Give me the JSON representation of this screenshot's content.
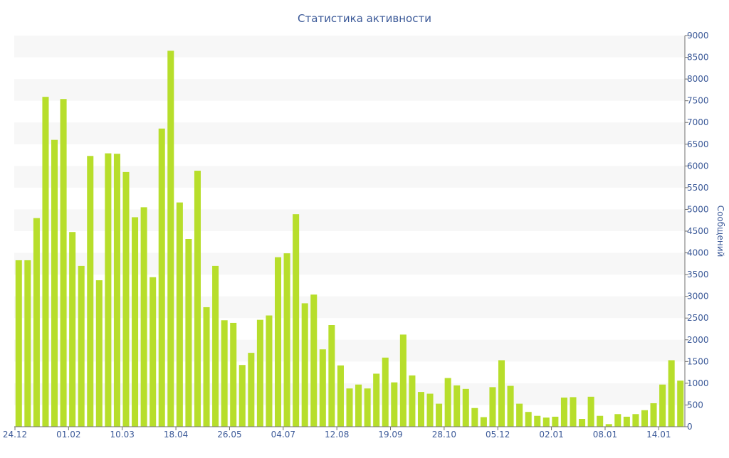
{
  "chart_data": {
    "type": "bar",
    "title": "Статистика активности",
    "ylabel": "Сообщений",
    "xlabel": "",
    "ylim": [
      0,
      9000
    ],
    "y_ticks": [
      0,
      500,
      1000,
      1500,
      2000,
      2500,
      3000,
      3500,
      4000,
      4500,
      5000,
      5500,
      6000,
      6500,
      7000,
      7500,
      8000,
      8500,
      9000
    ],
    "x_tick_labels": [
      "24.12",
      "01.02",
      "10.03",
      "18.04",
      "26.05",
      "04.07",
      "12.08",
      "19.09",
      "28.10",
      "05.12",
      "02.01",
      "08.01",
      "14.01"
    ],
    "x_tick_bar_index": [
      0,
      6,
      12,
      18,
      24,
      30,
      36,
      42,
      48,
      54,
      60,
      66,
      72
    ],
    "grid": "horizontal bands",
    "y_axis_side": "right",
    "bar_color": "#b7de2b",
    "band_color": "#f7f7f7",
    "text_color": "#3b5998",
    "values": [
      3830,
      3830,
      4800,
      7590,
      6600,
      7540,
      4480,
      3700,
      6230,
      3370,
      6290,
      6280,
      5860,
      4820,
      5050,
      3440,
      6860,
      8650,
      5160,
      4320,
      5890,
      2750,
      3700,
      2450,
      2390,
      1420,
      1700,
      2460,
      2560,
      3900,
      3990,
      4890,
      2840,
      3040,
      1780,
      2340,
      1410,
      880,
      970,
      880,
      1220,
      1590,
      1020,
      2120,
      1180,
      800,
      760,
      530,
      1120,
      950,
      870,
      430,
      220,
      910,
      1530,
      940,
      530,
      340,
      250,
      210,
      230,
      670,
      680,
      180,
      690,
      250,
      60,
      290,
      230,
      290,
      380,
      540,
      970,
      1530,
      1060
    ]
  }
}
